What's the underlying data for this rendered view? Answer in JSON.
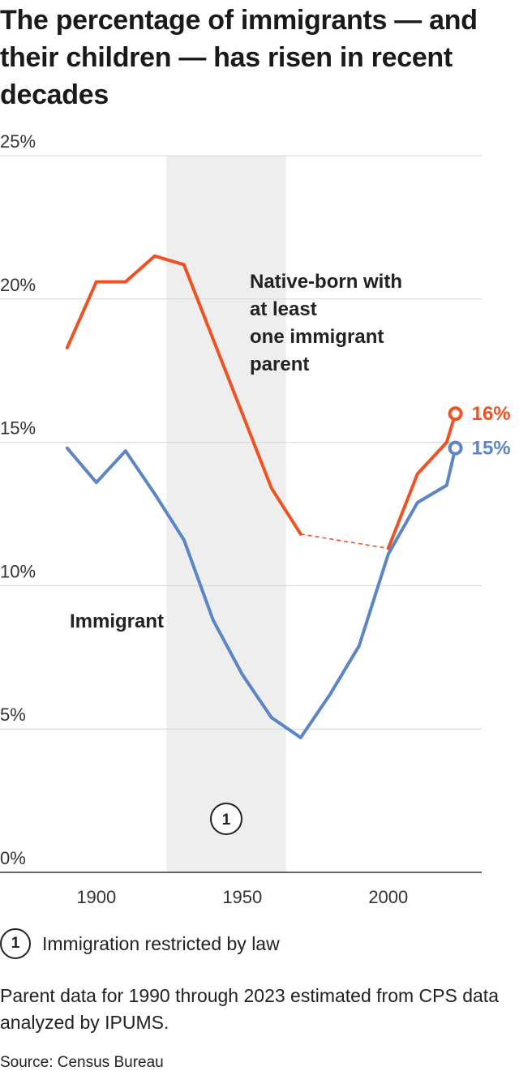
{
  "header": {
    "title": "The percentage of immigrants — and their children — has risen in recent decades"
  },
  "chart_data": {
    "type": "line",
    "title": "The percentage of immigrants — and their children — has risen in recent decades",
    "xlabel": "",
    "ylabel": "",
    "xlim": [
      1880,
      2030
    ],
    "ylim": [
      0,
      25
    ],
    "x_ticks": [
      {
        "value": 1900,
        "label": "1900"
      },
      {
        "value": 1950,
        "label": "1950"
      },
      {
        "value": 2000,
        "label": "2000"
      }
    ],
    "y_ticks": [
      {
        "value": 0,
        "label": "0%"
      },
      {
        "value": 5,
        "label": "5%"
      },
      {
        "value": 10,
        "label": "10%"
      },
      {
        "value": 15,
        "label": "15%"
      },
      {
        "value": 20,
        "label": "20%"
      },
      {
        "value": 25,
        "label": "25%"
      }
    ],
    "grid": true,
    "legend": "none (direct labels)",
    "shaded_period": {
      "x": [
        1924,
        1965
      ],
      "marker": "1",
      "note": "Immigration restricted by law"
    },
    "series": [
      {
        "name": "Native-born with at least one immigrant parent",
        "label_lines": [
          "Native-born with",
          "at least",
          "one immigrant",
          "parent"
        ],
        "color": "#f05123",
        "x": [
          1890,
          1900,
          1910,
          1920,
          1930,
          1940,
          1950,
          1960,
          1970
        ],
        "y": [
          18.3,
          20.6,
          20.6,
          21.5,
          21.2,
          18.6,
          16.0,
          13.4,
          11.8
        ],
        "estimated_segment": {
          "x": [
            1970,
            2000
          ],
          "y": [
            11.8,
            11.3
          ],
          "style": "dashed"
        },
        "x_recent": [
          2000,
          2010,
          2020,
          2023
        ],
        "y_recent": [
          11.3,
          13.9,
          15.0,
          16.0
        ],
        "end_label": "16%"
      },
      {
        "name": "Immigrant",
        "label_lines": [
          "Immigrant"
        ],
        "color": "#5b85c6",
        "x": [
          1890,
          1900,
          1910,
          1920,
          1930,
          1940,
          1950,
          1960,
          1970,
          1980,
          1990,
          2000,
          2010,
          2020,
          2023
        ],
        "y": [
          14.8,
          13.6,
          14.7,
          13.2,
          11.6,
          8.8,
          6.9,
          5.4,
          4.7,
          6.2,
          7.9,
          11.1,
          12.9,
          13.5,
          14.8
        ],
        "end_label": "15%"
      }
    ]
  },
  "note": {
    "marker": "1",
    "text": "Immigration restricted by law"
  },
  "footnote": "Parent data for 1990 through 2023 estimated from CPS data analyzed by IPUMS.",
  "source": "Source: Census Bureau"
}
